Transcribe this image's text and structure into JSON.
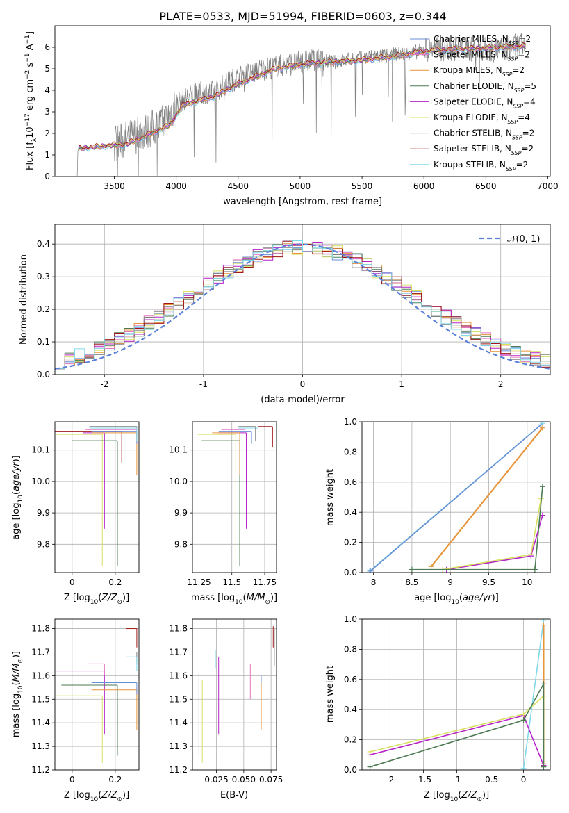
{
  "figure": {
    "title": "PLATE=0533, MJD=51994, FIBERID=0603, z=0.344"
  },
  "colors": {
    "Chabrier MILES": "#6a8ed6",
    "Salpeter MILES": "#e377c2",
    "Kroupa MILES": "#e8943a",
    "Chabrier ELODIE": "#4c7a52",
    "Salpeter ELODIE": "#b624c8",
    "Kroupa ELODIE": "#d8e060",
    "Chabrier STELIB": "#808080",
    "Salpeter STELIB": "#a01818",
    "Kroupa STELIB": "#80d8e8"
  },
  "chart_data": [
    {
      "id": "spectrum",
      "type": "line",
      "xlabel": "wavelength [Angstrom, rest frame]",
      "ylabel": "Flux [f_λ10^-17 erg cm^-2 s^-1 A^-1]",
      "xlim": [
        3020,
        7020
      ],
      "ylim": [
        0,
        7
      ],
      "xticks": [
        3500,
        4000,
        4500,
        5000,
        5500,
        6000,
        6500,
        7000
      ],
      "yticks": [
        0,
        1,
        2,
        3,
        4,
        5,
        6
      ],
      "legend_position": "right",
      "legend": [
        {
          "name": "Chabrier MILES",
          "sub": "SSP",
          "n": "=2"
        },
        {
          "name": "Salpeter MILES",
          "sub": "SSP",
          "n": "=2"
        },
        {
          "name": "Kroupa MILES",
          "sub": "SSP",
          "n": "=2"
        },
        {
          "name": "Chabrier ELODIE",
          "sub": "SSP",
          "n": "=5"
        },
        {
          "name": "Salpeter ELODIE",
          "sub": "SSP",
          "n": "=4"
        },
        {
          "name": "Kroupa ELODIE",
          "sub": "SSP",
          "n": "=4"
        },
        {
          "name": "Chabrier STELIB",
          "sub": "SSP",
          "n": "=2"
        },
        {
          "name": "Salpeter STELIB",
          "sub": "SSP",
          "n": "=2"
        },
        {
          "name": "Kroupa STELIB",
          "sub": "SSP",
          "n": "=2"
        }
      ],
      "data_color": "#808080",
      "data_x": [
        3200,
        3300,
        3400,
        3500,
        3600,
        3700,
        3800,
        3900,
        4000,
        4100,
        4200,
        4300,
        4400,
        4500,
        4600,
        4700,
        4800,
        4900,
        5000,
        5100,
        5200,
        5300,
        5400,
        5500,
        5600,
        5700,
        5800,
        5900,
        6000,
        6100,
        6200,
        6300,
        6400,
        6500,
        6600,
        6700,
        6800
      ],
      "data_y": [
        1.25,
        1.35,
        1.4,
        1.5,
        1.7,
        2.0,
        2.2,
        2.5,
        3.4,
        3.7,
        3.9,
        3.9,
        4.3,
        4.6,
        4.8,
        5.0,
        5.1,
        5.2,
        5.3,
        5.4,
        5.35,
        5.3,
        5.45,
        5.5,
        5.6,
        5.6,
        5.7,
        5.7,
        5.9,
        5.95,
        5.9,
        5.95,
        5.9,
        5.9,
        5.9,
        6.0,
        6.1
      ],
      "model_x": [
        3200,
        3400,
        3600,
        3800,
        3950,
        4050,
        4300,
        4500,
        4800,
        5000,
        5200,
        5500,
        5800,
        6000,
        6200,
        6500,
        6800
      ],
      "model_y": [
        1.3,
        1.4,
        1.5,
        2.0,
        2.4,
        3.3,
        3.7,
        4.3,
        5.0,
        5.2,
        5.3,
        5.4,
        5.6,
        5.8,
        5.9,
        5.95,
        6.05
      ]
    },
    {
      "id": "residuals",
      "type": "line",
      "xlabel": "(data-model)/error",
      "ylabel": "Normed distribution",
      "xlim": [
        -2.5,
        2.5
      ],
      "ylim": [
        0,
        0.46
      ],
      "xticks": [
        -2,
        -1,
        0,
        1,
        2
      ],
      "yticks": [
        0.0,
        0.1,
        0.2,
        0.3,
        0.4
      ],
      "grid": true,
      "legend_position": "top-right",
      "gauss_label": "𝒩(0, 1)",
      "gauss_color": "#5b80d8"
    },
    {
      "id": "age-vs-Z",
      "type": "scatter",
      "xlabel": "Z [log10(Z/Z⊙)]",
      "ylabel": "age  [log10(age/yr)]",
      "xlim": [
        -0.08,
        0.31
      ],
      "ylim": [
        9.71,
        10.19
      ],
      "xticks": [
        0.0,
        0.2
      ],
      "yticks": [
        9.8,
        9.9,
        10.0,
        10.1
      ],
      "grid": true
    },
    {
      "id": "age-vs-mass",
      "type": "scatter",
      "xlabel": "mass [log10(M/M⊙)]",
      "ylabel": "",
      "xlim": [
        11.2,
        11.84
      ],
      "ylim": [
        9.71,
        10.19
      ],
      "xticks": [
        11.25,
        11.5,
        11.75
      ],
      "yticks": [
        9.8,
        9.9,
        10.0,
        10.1
      ],
      "grid": true
    },
    {
      "id": "massweight-vs-age",
      "type": "line",
      "xlabel": "age  [log10(age/yr)]",
      "ylabel": "mass weight",
      "xlim": [
        7.85,
        10.3
      ],
      "ylim": [
        0,
        1.0
      ],
      "xticks": [
        8.0,
        8.5,
        9.0,
        9.5,
        10.0
      ],
      "yticks": [
        0.0,
        0.2,
        0.4,
        0.6,
        0.8,
        1.0
      ],
      "grid": true,
      "series": [
        {
          "name": "Kroupa STELIB",
          "x": [
            7.95,
            10.2
          ],
          "y": [
            0.01,
            0.99
          ]
        },
        {
          "name": "Chabrier MILES",
          "x": [
            7.96,
            10.18
          ],
          "y": [
            0.01,
            0.98
          ]
        },
        {
          "name": "Kroupa MILES",
          "x": [
            8.75,
            10.2
          ],
          "y": [
            0.04,
            0.96
          ]
        },
        {
          "name": "Salpeter ELODIE",
          "x": [
            8.95,
            10.05,
            10.2
          ],
          "y": [
            0.02,
            0.11,
            0.38
          ]
        },
        {
          "name": "Kroupa ELODIE",
          "x": [
            8.9,
            10.05,
            10.18
          ],
          "y": [
            0.02,
            0.12,
            0.49
          ]
        },
        {
          "name": "Chabrier ELODIE",
          "x": [
            8.5,
            10.1,
            10.2
          ],
          "y": [
            0.02,
            0.02,
            0.57
          ]
        }
      ]
    },
    {
      "id": "mass-vs-Z",
      "type": "scatter",
      "xlabel": "Z [log10(Z/Z⊙)]",
      "ylabel": "mass [log10(M/M⊙)]",
      "xlim": [
        -0.08,
        0.31
      ],
      "ylim": [
        11.2,
        11.84
      ],
      "xticks": [
        0.0,
        0.2
      ],
      "yticks": [
        11.2,
        11.3,
        11.4,
        11.5,
        11.6,
        11.7,
        11.8
      ],
      "grid": true
    },
    {
      "id": "mass-vs-EBV",
      "type": "scatter",
      "xlabel": "E(B-V)",
      "ylabel": "",
      "xlim": [
        0.003,
        0.08
      ],
      "ylim": [
        11.2,
        11.84
      ],
      "xticks": [
        0.025,
        0.05,
        0.075
      ],
      "xtick_labels": [
        "0.025",
        "0.050",
        "0.075"
      ],
      "yticks": [
        11.2,
        11.3,
        11.4,
        11.5,
        11.6,
        11.7,
        11.8
      ],
      "grid": true
    },
    {
      "id": "massweight-vs-Z",
      "type": "line",
      "xlabel": "Z [log10(Z/Z⊙)]",
      "ylabel": "mass weight",
      "xlim": [
        -2.42,
        0.4
      ],
      "ylim": [
        0,
        1.0
      ],
      "xticks": [
        -2.0,
        -1.5,
        -1.0,
        -0.5,
        0.0
      ],
      "yticks": [
        0.0,
        0.2,
        0.4,
        0.6,
        0.8,
        1.0
      ],
      "grid": true,
      "series": [
        {
          "name": "Kroupa STELIB",
          "x": [
            0.0,
            0.3
          ],
          "y": [
            0.01,
            0.99
          ]
        },
        {
          "name": "Kroupa MILES",
          "x": [
            0.3,
            0.3
          ],
          "y": [
            0.04,
            0.96
          ]
        },
        {
          "name": "Salpeter ELODIE",
          "x": [
            -2.3,
            0.0,
            0.3
          ],
          "y": [
            0.1,
            0.36,
            0.03
          ]
        },
        {
          "name": "Kroupa ELODIE",
          "x": [
            -2.3,
            0.0,
            0.3,
            0.3
          ],
          "y": [
            0.12,
            0.37,
            0.49,
            0.02
          ]
        },
        {
          "name": "Chabrier ELODIE",
          "x": [
            -2.3,
            0.0,
            0.3,
            0.3
          ],
          "y": [
            0.02,
            0.33,
            0.57,
            0.02
          ]
        }
      ]
    }
  ]
}
